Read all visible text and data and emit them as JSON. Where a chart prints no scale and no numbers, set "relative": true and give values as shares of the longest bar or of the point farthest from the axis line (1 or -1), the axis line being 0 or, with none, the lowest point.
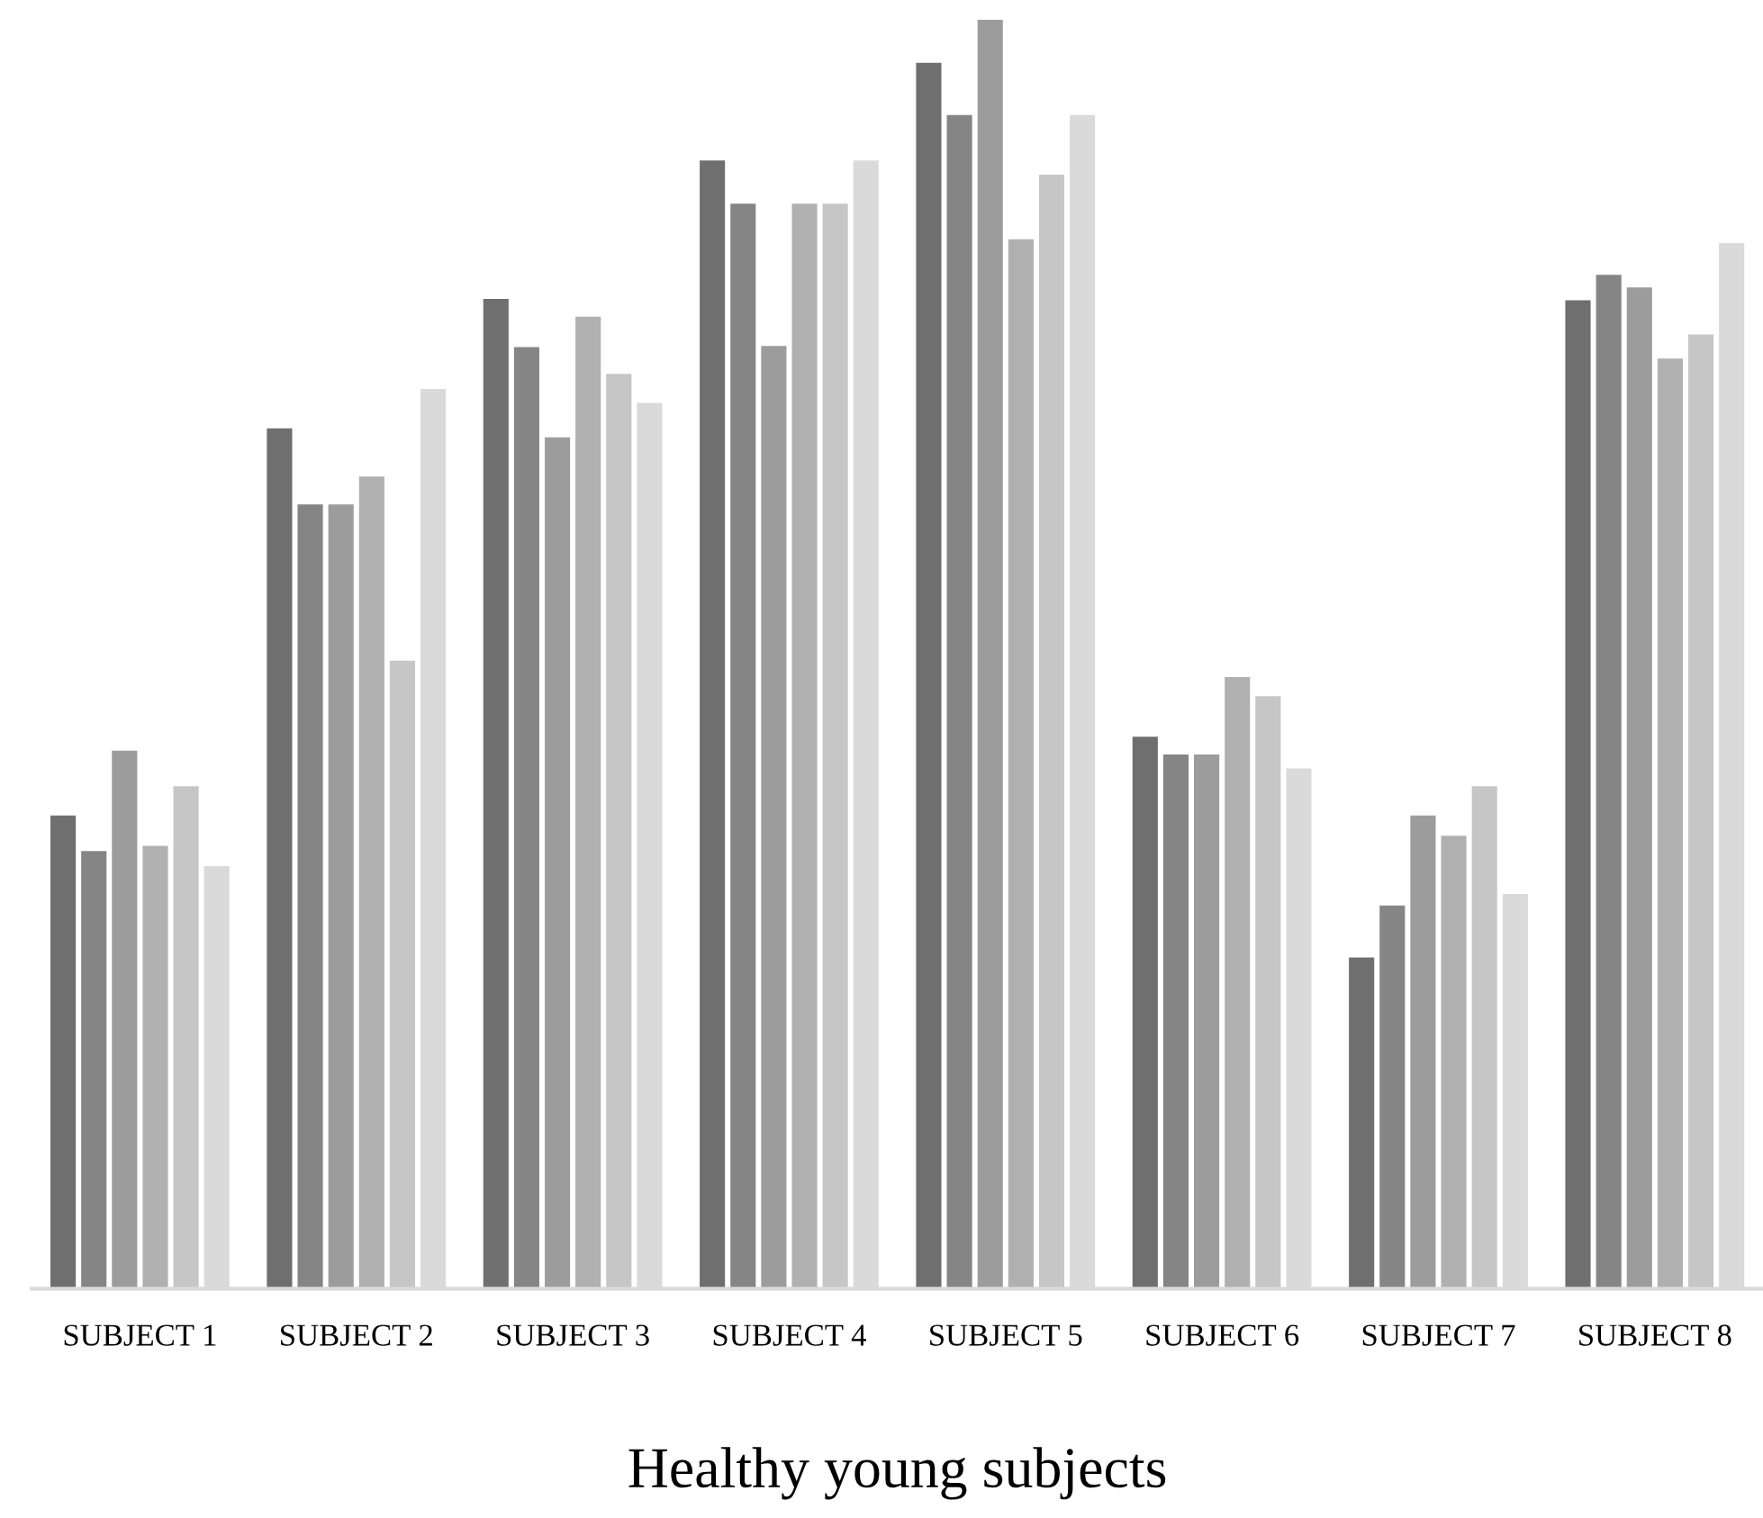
{
  "chart_data": {
    "type": "bar",
    "relative": true,
    "xlabel": "Healthy young subjects",
    "categories": [
      "SUBJECT 1",
      "SUBJECT 2",
      "SUBJECT 3",
      "SUBJECT 4",
      "SUBJECT 5",
      "SUBJECT 6",
      "SUBJECT 7",
      "SUBJECT 8"
    ],
    "series": [
      {
        "color": "#6f6f6f",
        "values": [
          0.373,
          0.678,
          0.78,
          0.889,
          0.966,
          0.435,
          0.261,
          0.779
        ]
      },
      {
        "color": "#858585",
        "values": [
          0.345,
          0.618,
          0.742,
          0.855,
          0.925,
          0.421,
          0.302,
          0.799
        ]
      },
      {
        "color": "#9c9c9c",
        "values": [
          0.424,
          0.618,
          0.671,
          0.743,
          1,
          0.421,
          0.373,
          0.789
        ]
      },
      {
        "color": "#b0b0b0",
        "values": [
          0.349,
          0.64,
          0.766,
          0.855,
          0.827,
          0.482,
          0.357,
          0.733
        ]
      },
      {
        "color": "#c6c6c6",
        "values": [
          0.396,
          0.495,
          0.721,
          0.855,
          0.878,
          0.467,
          0.396,
          0.752
        ]
      },
      {
        "color": "#dadada",
        "values": [
          0.333,
          0.709,
          0.698,
          0.889,
          0.925,
          0.41,
          0.311,
          0.824
        ]
      }
    ],
    "grid": false,
    "legend": false
  }
}
